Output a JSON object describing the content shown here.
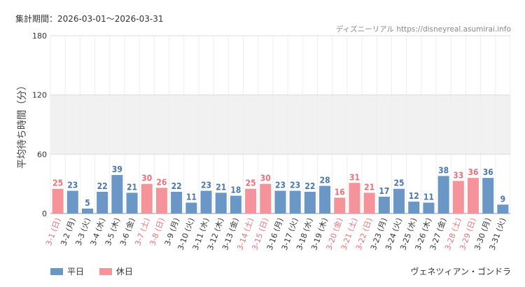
{
  "header": {
    "period": "集計期間：2026-03-01～2026-03-31",
    "source": "ディズニーリアル https://disneyreal.asumirai.info"
  },
  "footer": {
    "attraction": "ヴェネツィアン・ゴンドラ"
  },
  "colors": {
    "weekday": "#6a97c6",
    "holiday": "#f4949a",
    "weekday_text": "#4a78ad",
    "holiday_text": "#e8727a",
    "axis_text": "#333333",
    "band": "#f1f1f1",
    "grid": "#dddddd"
  },
  "chart_data": {
    "type": "bar",
    "ylabel": "平均待ち時間（分）",
    "ylim": [
      0,
      180
    ],
    "yticks": [
      0,
      60,
      120,
      180
    ],
    "grid": true,
    "shaded_band": [
      60,
      120
    ],
    "legend": {
      "position": "bottom-left",
      "entries": [
        {
          "key": "weekday",
          "label": "平日"
        },
        {
          "key": "holiday",
          "label": "休日"
        }
      ]
    },
    "categories": [
      "3-1 (日)",
      "3-2 (月)",
      "3-3 (火)",
      "3-4 (水)",
      "3-5 (木)",
      "3-6 (金)",
      "3-7 (土)",
      "3-8 (日)",
      "3-9 (月)",
      "3-10 (火)",
      "3-11 (水)",
      "3-12 (木)",
      "3-13 (金)",
      "3-14 (土)",
      "3-15 (日)",
      "3-16 (月)",
      "3-17 (火)",
      "3-18 (水)",
      "3-19 (木)",
      "3-20 (金)",
      "3-21 (土)",
      "3-22 (日)",
      "3-23 (月)",
      "3-24 (火)",
      "3-25 (水)",
      "3-26 (木)",
      "3-27 (金)",
      "3-28 (土)",
      "3-29 (日)",
      "3-30 (月)",
      "3-31 (火)"
    ],
    "values": [
      25,
      23,
      5,
      22,
      39,
      21,
      30,
      26,
      22,
      11,
      23,
      21,
      18,
      25,
      30,
      23,
      23,
      22,
      28,
      16,
      31,
      21,
      17,
      25,
      12,
      11,
      38,
      33,
      36,
      36,
      9
    ],
    "day_type": [
      "holiday",
      "weekday",
      "weekday",
      "weekday",
      "weekday",
      "weekday",
      "holiday",
      "holiday",
      "weekday",
      "weekday",
      "weekday",
      "weekday",
      "weekday",
      "holiday",
      "holiday",
      "weekday",
      "weekday",
      "weekday",
      "weekday",
      "holiday",
      "holiday",
      "holiday",
      "weekday",
      "weekday",
      "weekday",
      "weekday",
      "weekday",
      "holiday",
      "holiday",
      "weekday",
      "weekday"
    ]
  }
}
